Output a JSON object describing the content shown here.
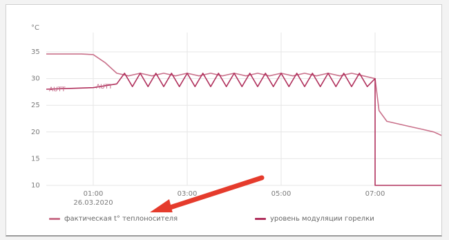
{
  "chart_data": {
    "type": "line",
    "unit_label": "°C",
    "y_ticks": [
      "35",
      "30",
      "25",
      "20",
      "15",
      "10"
    ],
    "ylim": [
      10,
      35
    ],
    "x_ticks": [
      {
        "time": "01:00",
        "date": "26.03.2020"
      },
      {
        "time": "03:00",
        "date": ""
      },
      {
        "time": "05:00",
        "date": ""
      },
      {
        "time": "07:00",
        "date": ""
      }
    ],
    "xlim": [
      "00:00",
      "08:30"
    ],
    "grid": true,
    "annotations": [
      {
        "text": "AUTT",
        "x": "00:00",
        "y": 28
      },
      {
        "text": "AUTT",
        "x": "01:00",
        "y": 28.5
      }
    ],
    "series": [
      {
        "name": "фактическая t° теплоносителя",
        "color": "#c9708a",
        "x": [
          "00:00",
          "00:45",
          "01:00",
          "01:15",
          "01:30",
          "01:45",
          "02:00",
          "02:15",
          "02:30",
          "02:45",
          "03:00",
          "03:15",
          "03:30",
          "03:45",
          "04:00",
          "04:15",
          "04:30",
          "04:45",
          "05:00",
          "05:15",
          "05:30",
          "05:45",
          "06:00",
          "06:15",
          "06:30",
          "06:45",
          "07:00",
          "07:05",
          "07:15",
          "07:45",
          "08:00",
          "08:15",
          "08:30"
        ],
        "y": [
          34.6,
          34.6,
          34.5,
          33,
          31,
          30.5,
          31,
          30.5,
          31,
          30.5,
          31,
          30.5,
          31,
          30.5,
          31,
          30.5,
          31,
          30.5,
          31,
          30.5,
          31,
          30.5,
          31,
          30.5,
          31,
          30.5,
          30,
          24,
          22,
          21,
          20.5,
          20,
          19
        ]
      },
      {
        "name": "уровень модуляции горелки",
        "color": "#b0305c",
        "x": [
          "00:00",
          "01:00",
          "01:30",
          "01:40",
          "01:50",
          "02:00",
          "02:10",
          "02:20",
          "02:30",
          "02:40",
          "02:50",
          "03:00",
          "03:10",
          "03:20",
          "03:30",
          "03:40",
          "03:50",
          "04:00",
          "04:10",
          "04:20",
          "04:30",
          "04:40",
          "04:50",
          "05:00",
          "05:10",
          "05:20",
          "05:30",
          "05:40",
          "05:50",
          "06:00",
          "06:10",
          "06:20",
          "06:30",
          "06:40",
          "06:50",
          "07:00",
          "07:00",
          "07:30",
          "08:30"
        ],
        "y": [
          28,
          28.3,
          29,
          31,
          28.5,
          31,
          28.5,
          31,
          28.5,
          31,
          28.5,
          31,
          28.5,
          31,
          28.5,
          31,
          28.5,
          31,
          28.5,
          31,
          28.5,
          31,
          28.5,
          31,
          28.5,
          31,
          28.5,
          31,
          28.5,
          31,
          28.5,
          31,
          28.5,
          31,
          28.5,
          30,
          10,
          10,
          10
        ]
      }
    ],
    "legend_position": "bottom"
  }
}
